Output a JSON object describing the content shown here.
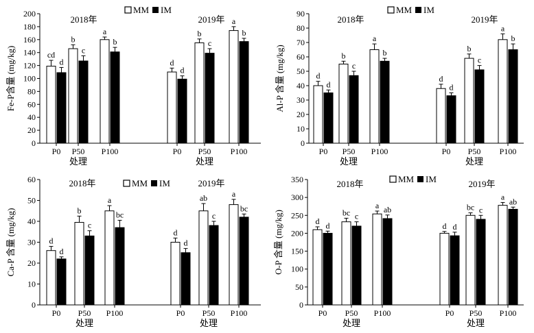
{
  "chart_data": [
    {
      "type": "bar",
      "ylabel": "Fe-P含量 (mg/kg)",
      "xlabel": "处理",
      "ylim": [
        0,
        200
      ],
      "yticks": [
        0,
        20,
        40,
        60,
        80,
        100,
        120,
        140,
        160,
        180,
        200
      ],
      "groups": [
        {
          "year": "2018年",
          "categories": [
            "P0",
            "P50",
            "P100"
          ],
          "series": [
            {
              "name": "MM",
              "values": [
                119,
                146,
                160
              ],
              "errors": [
                9,
                6,
                4
              ],
              "letters": [
                "cd",
                "b",
                "a"
              ]
            },
            {
              "name": "IM",
              "values": [
                109,
                127,
                141
              ],
              "errors": [
                8,
                8,
                7
              ],
              "letters": [
                "d",
                "c",
                "b"
              ]
            }
          ]
        },
        {
          "year": "2019年",
          "categories": [
            "P0",
            "P50",
            "P100"
          ],
          "series": [
            {
              "name": "MM",
              "values": [
                110,
                155,
                174
              ],
              "errors": [
                6,
                6,
                6
              ],
              "letters": [
                "d",
                "b",
                "a"
              ]
            },
            {
              "name": "IM",
              "values": [
                99,
                139,
                157
              ],
              "errors": [
                5,
                7,
                5
              ],
              "letters": [
                "d",
                "c",
                "b"
              ]
            }
          ]
        }
      ],
      "legend": [
        "MM",
        "IM"
      ],
      "legend_position": "top-center"
    },
    {
      "type": "bar",
      "ylabel": "Al-P 含量 (mg/kg)",
      "xlabel": "处理",
      "ylim": [
        0,
        90
      ],
      "yticks": [
        0,
        10,
        20,
        30,
        40,
        50,
        60,
        70,
        80,
        90
      ],
      "groups": [
        {
          "year": "2018年",
          "categories": [
            "P0",
            "P50",
            "P100"
          ],
          "series": [
            {
              "name": "MM",
              "values": [
                40,
                55,
                65
              ],
              "errors": [
                3,
                2,
                4
              ],
              "letters": [
                "d",
                "b",
                "a"
              ]
            },
            {
              "name": "IM",
              "values": [
                35,
                47,
                57
              ],
              "errors": [
                2,
                3,
                2
              ],
              "letters": [
                "d",
                "c",
                "b"
              ]
            }
          ]
        },
        {
          "year": "2019年",
          "categories": [
            "P0",
            "P50",
            "P100"
          ],
          "series": [
            {
              "name": "MM",
              "values": [
                38,
                59,
                72
              ],
              "errors": [
                3,
                3,
                4
              ],
              "letters": [
                "d",
                "b",
                "a"
              ]
            },
            {
              "name": "IM",
              "values": [
                33,
                51,
                65
              ],
              "errors": [
                2,
                3,
                4
              ],
              "letters": [
                "d",
                "c",
                "b"
              ]
            }
          ]
        }
      ],
      "legend": [
        "MM",
        "IM"
      ],
      "legend_position": "top-center"
    },
    {
      "type": "bar",
      "ylabel": "Ca-P 含量 (mg/kg)",
      "xlabel": "处理",
      "ylim": [
        0,
        60
      ],
      "yticks": [
        0,
        10,
        20,
        30,
        40,
        50,
        60
      ],
      "groups": [
        {
          "year": "2018年",
          "categories": [
            "P0",
            "P50",
            "P100"
          ],
          "series": [
            {
              "name": "MM",
              "values": [
                26,
                39.5,
                45
              ],
              "errors": [
                2,
                3,
                2.5
              ],
              "letters": [
                "d",
                "b",
                "a"
              ]
            },
            {
              "name": "IM",
              "values": [
                22,
                33,
                37
              ],
              "errors": [
                1,
                2.5,
                3.5
              ],
              "letters": [
                "d",
                "c",
                "bc"
              ]
            }
          ]
        },
        {
          "year": "2019年",
          "categories": [
            "P0",
            "P50",
            "P100"
          ],
          "series": [
            {
              "name": "MM",
              "values": [
                30,
                45,
                48
              ],
              "errors": [
                2,
                3.5,
                2.5
              ],
              "letters": [
                "d",
                "ab",
                "a"
              ]
            },
            {
              "name": "IM",
              "values": [
                25,
                38,
                42
              ],
              "errors": [
                2,
                2,
                1.5
              ],
              "letters": [
                "d",
                "c",
                "bc"
              ]
            }
          ]
        }
      ],
      "legend": [
        "MM",
        "IM"
      ],
      "legend_position": "top-center"
    },
    {
      "type": "bar",
      "ylabel": "O-P 含量 (mg/kg)",
      "xlabel": "处理",
      "ylim": [
        0,
        350
      ],
      "yticks": [
        0,
        50,
        100,
        150,
        200,
        250,
        300,
        350
      ],
      "groups": [
        {
          "year": "2018年",
          "categories": [
            "P0",
            "P50",
            "P100"
          ],
          "series": [
            {
              "name": "MM",
              "values": [
                210,
                232,
                254
              ],
              "errors": [
                8,
                10,
                8
              ],
              "letters": [
                "d",
                "bc",
                "a"
              ]
            },
            {
              "name": "IM",
              "values": [
                200,
                220,
                241
              ],
              "errors": [
                6,
                12,
                10
              ],
              "letters": [
                "d",
                "c",
                "ab"
              ]
            }
          ]
        },
        {
          "year": "2019年",
          "categories": [
            "P0",
            "P50",
            "P100"
          ],
          "series": [
            {
              "name": "MM",
              "values": [
                200,
                250,
                278
              ],
              "errors": [
                5,
                7,
                8
              ],
              "letters": [
                "d",
                "bc",
                "a"
              ]
            },
            {
              "name": "IM",
              "values": [
                193,
                239,
                267
              ],
              "errors": [
                10,
                11,
                6
              ],
              "letters": [
                "d",
                "c",
                "ab"
              ]
            }
          ]
        }
      ],
      "legend": [
        "MM",
        "IM"
      ],
      "legend_position": "top-center"
    }
  ]
}
